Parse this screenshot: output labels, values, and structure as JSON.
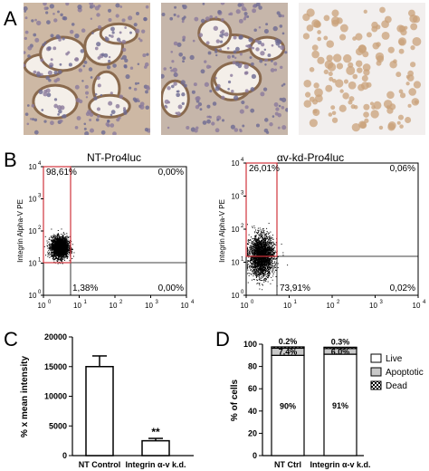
{
  "panels": {
    "A": "A",
    "B": "B",
    "C": "C",
    "D": "D"
  },
  "flow": [
    {
      "title": "NT-Pro4luc",
      "ylabel": "Integrin Alpha-V PE",
      "gates": {
        "upper_left": "98,61%",
        "upper_right": "0,00%",
        "lower_left": "1,38%",
        "lower_right": "0,00%"
      },
      "ticks_y": [
        "10",
        "10",
        "10",
        "10",
        "10"
      ],
      "ticks_x": [
        "10",
        "10",
        "10",
        "10",
        "10"
      ],
      "exp": [
        "0",
        "1",
        "2",
        "3",
        "4"
      ],
      "cloud": {
        "cx": 0.45,
        "cy": 1.5,
        "sx": 0.12,
        "sy": 0.16,
        "n": 2600
      }
    },
    {
      "title": "αv-kd-Pro4luc",
      "ylabel": "Integrin Alpha-V PE",
      "gates": {
        "upper_left": "26,01%",
        "upper_right": "0,06%",
        "lower_left": "73,91%",
        "lower_right": "0,02%"
      },
      "ticks_y": [
        "10",
        "10",
        "10",
        "10",
        "10"
      ],
      "ticks_x": [
        "10",
        "10",
        "10",
        "10",
        "10"
      ],
      "exp": [
        "0",
        "1",
        "2",
        "3",
        "4"
      ],
      "cloud": {
        "cx": 0.35,
        "cy": 1.2,
        "sx": 0.14,
        "sy": 0.3,
        "n": 2600
      }
    }
  ],
  "chart_data": [
    {
      "type": "bar",
      "ylabel": "% x mean intensity",
      "categories": [
        "NT Control",
        "Integrin α-v k.d."
      ],
      "values": [
        15000,
        2500
      ],
      "errors": [
        1800,
        400
      ],
      "ylim": [
        0,
        20000
      ],
      "yticks": [
        "0",
        "5000",
        "10000",
        "15000",
        "20000"
      ],
      "annotation": "**"
    },
    {
      "type": "bar",
      "stacked": true,
      "ylabel": "% of cells",
      "categories": [
        "NT Ctrl",
        "Integrin α-v k.d."
      ],
      "ylim": [
        0,
        100
      ],
      "yticks": [
        "0",
        "20",
        "40",
        "60",
        "80",
        "100"
      ],
      "series": [
        {
          "name": "Live",
          "values": [
            90,
            91
          ],
          "labels": [
            "90%",
            "91%"
          ],
          "color": "#ffffff"
        },
        {
          "name": "Apoptotic",
          "values": [
            7.4,
            6.0
          ],
          "labels": [
            "7.4%",
            "6.0%"
          ],
          "color": "#c8c8c8"
        },
        {
          "name": "Dead",
          "values": [
            0.2,
            0.3
          ],
          "labels": [
            "0.2%",
            "0.3%"
          ],
          "color": "checker"
        }
      ]
    }
  ]
}
